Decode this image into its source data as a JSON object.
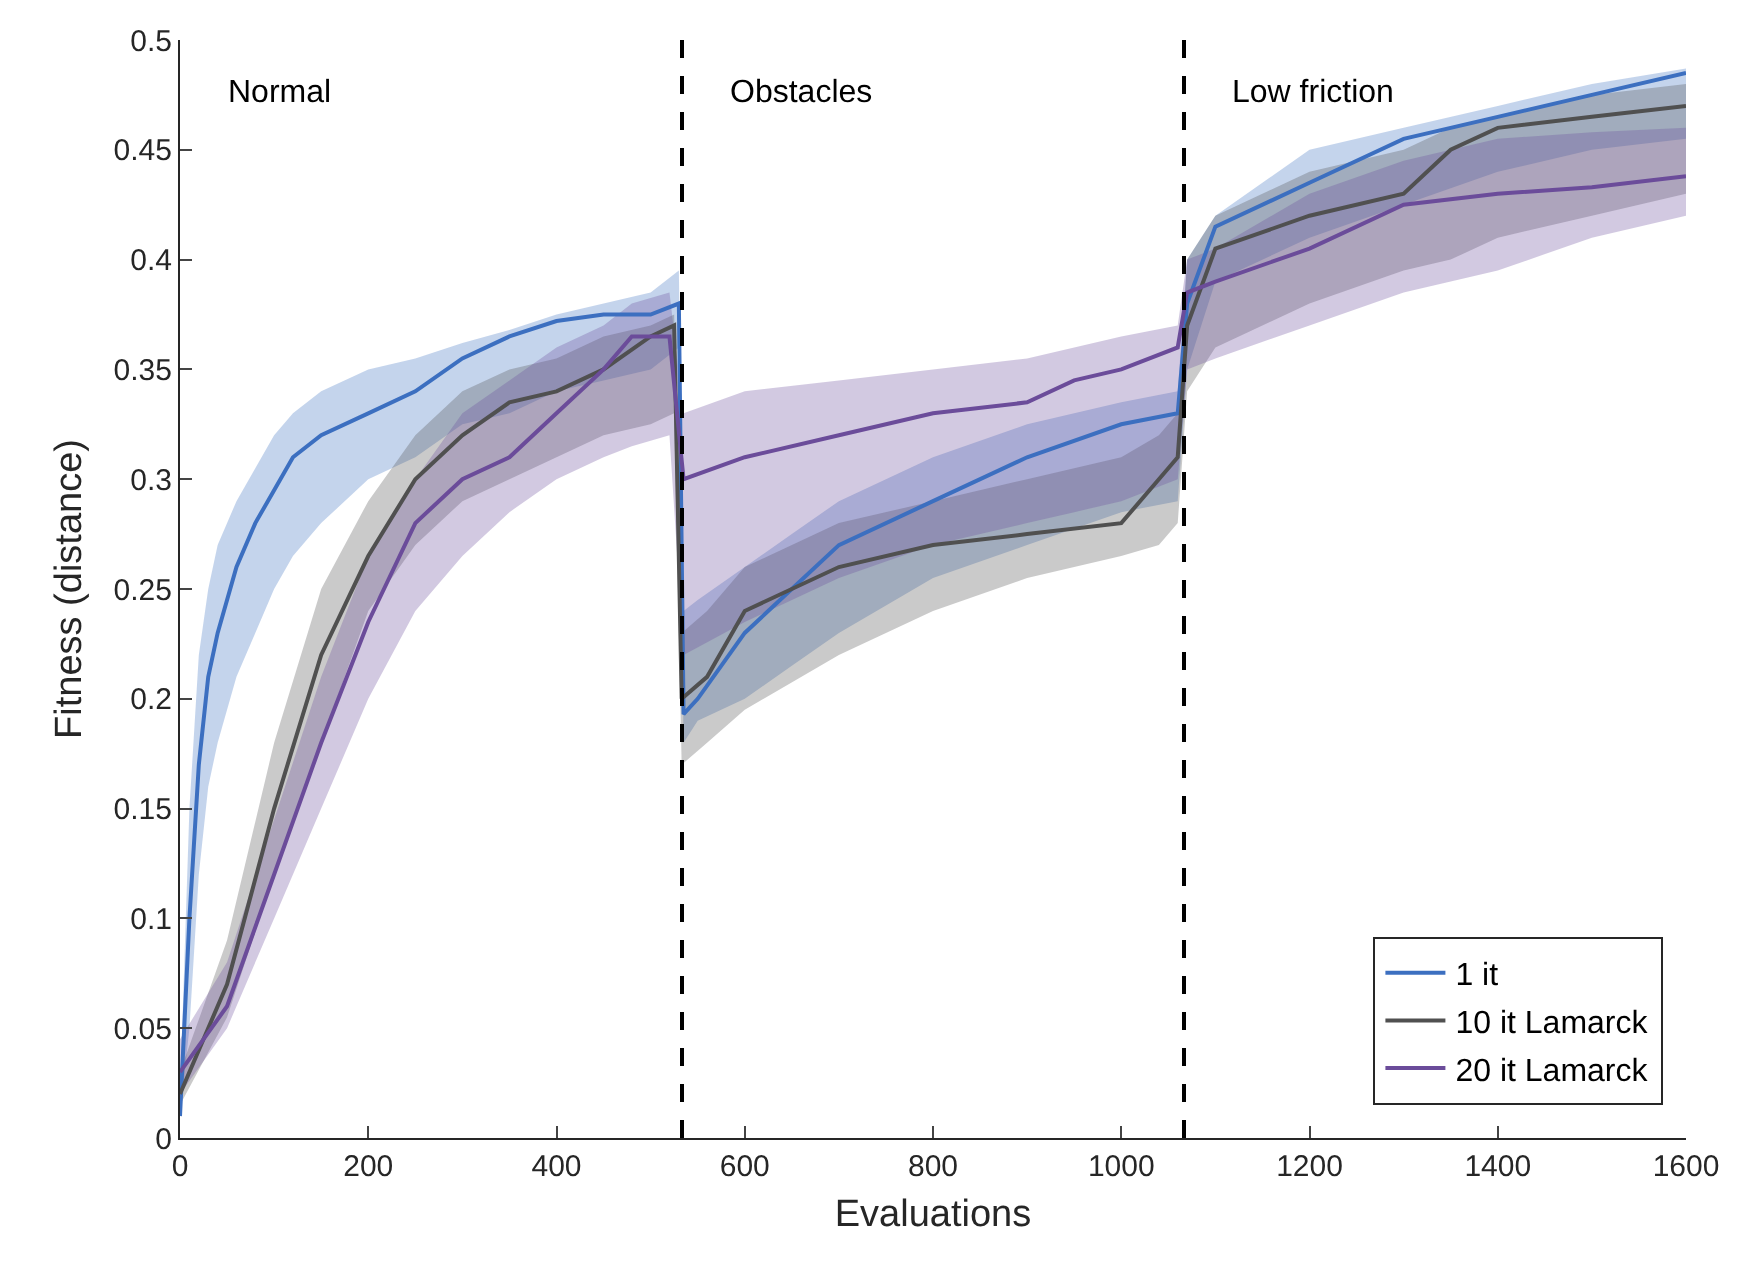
{
  "chart_data": {
    "type": "line",
    "xlabel": "Evaluations",
    "ylabel": "Fitness (distance)",
    "xlim": [
      0,
      1600
    ],
    "xticks": [
      0,
      200,
      400,
      600,
      800,
      1000,
      1200,
      1400,
      1600
    ],
    "ylim": [
      0,
      0.5
    ],
    "yticks": [
      0,
      0.05,
      0.1,
      0.15,
      0.2,
      0.25,
      0.3,
      0.35,
      0.4,
      0.45,
      0.5
    ],
    "legend": "bottom right",
    "line_style": "solid",
    "marker": "none",
    "ref_lines": [
      {
        "axis": "x",
        "value": 533.33,
        "color": "#000000",
        "line_style": "dashed"
      },
      {
        "axis": "x",
        "value": 1066.67,
        "color": "#000000",
        "line_style": "dashed"
      }
    ],
    "annotations": [
      "Normal",
      "Obstacles",
      "Low friction"
    ],
    "series": [
      {
        "name": "1 it",
        "color": "#3c6fc0",
        "x": [
          0,
          10,
          20,
          30,
          40,
          60,
          80,
          100,
          120,
          150,
          200,
          250,
          300,
          350,
          400,
          450,
          500,
          530,
          535,
          550,
          600,
          650,
          700,
          800,
          900,
          1000,
          1060,
          1070,
          1100,
          1200,
          1300,
          1400,
          1500,
          1600
        ],
        "values": [
          0.01,
          0.1,
          0.17,
          0.21,
          0.23,
          0.26,
          0.28,
          0.295,
          0.31,
          0.32,
          0.33,
          0.34,
          0.355,
          0.365,
          0.372,
          0.375,
          0.375,
          0.38,
          0.193,
          0.2,
          0.23,
          0.25,
          0.27,
          0.29,
          0.31,
          0.325,
          0.33,
          0.38,
          0.415,
          0.435,
          0.455,
          0.465,
          0.475,
          0.485
        ],
        "lower": [
          0.01,
          0.05,
          0.12,
          0.16,
          0.18,
          0.21,
          0.23,
          0.25,
          0.265,
          0.28,
          0.3,
          0.31,
          0.325,
          0.33,
          0.34,
          0.345,
          0.35,
          0.36,
          0.18,
          0.19,
          0.2,
          0.215,
          0.23,
          0.255,
          0.27,
          0.285,
          0.29,
          0.35,
          0.39,
          0.41,
          0.425,
          0.44,
          0.45,
          0.455
        ],
        "upper": [
          0.02,
          0.15,
          0.22,
          0.25,
          0.27,
          0.29,
          0.305,
          0.32,
          0.33,
          0.34,
          0.35,
          0.355,
          0.362,
          0.368,
          0.375,
          0.38,
          0.385,
          0.395,
          0.24,
          0.245,
          0.26,
          0.275,
          0.29,
          0.31,
          0.325,
          0.335,
          0.34,
          0.4,
          0.42,
          0.45,
          0.46,
          0.47,
          0.48,
          0.487
        ]
      },
      {
        "name": "10 it Lamarck",
        "color": "#505050",
        "x": [
          0,
          50,
          100,
          150,
          200,
          250,
          300,
          350,
          400,
          450,
          500,
          525,
          533,
          560,
          600,
          700,
          800,
          900,
          1000,
          1040,
          1060,
          1070,
          1100,
          1200,
          1300,
          1350,
          1400,
          1500,
          1600
        ],
        "values": [
          0.02,
          0.07,
          0.15,
          0.22,
          0.265,
          0.3,
          0.32,
          0.335,
          0.34,
          0.35,
          0.365,
          0.37,
          0.2,
          0.21,
          0.24,
          0.26,
          0.27,
          0.275,
          0.28,
          0.3,
          0.31,
          0.37,
          0.405,
          0.42,
          0.43,
          0.45,
          0.46,
          0.465,
          0.47
        ],
        "lower": [
          0.015,
          0.055,
          0.12,
          0.18,
          0.24,
          0.27,
          0.29,
          0.3,
          0.31,
          0.32,
          0.325,
          0.33,
          0.17,
          0.18,
          0.195,
          0.22,
          0.24,
          0.255,
          0.265,
          0.27,
          0.28,
          0.34,
          0.36,
          0.38,
          0.395,
          0.4,
          0.41,
          0.42,
          0.43
        ],
        "upper": [
          0.03,
          0.09,
          0.18,
          0.25,
          0.29,
          0.32,
          0.34,
          0.35,
          0.355,
          0.365,
          0.37,
          0.375,
          0.23,
          0.24,
          0.26,
          0.28,
          0.29,
          0.3,
          0.31,
          0.32,
          0.33,
          0.4,
          0.42,
          0.44,
          0.45,
          0.46,
          0.465,
          0.475,
          0.48
        ]
      },
      {
        "name": "20 it Lamarck",
        "color": "#6b4c9a",
        "x": [
          0,
          50,
          100,
          150,
          200,
          250,
          300,
          350,
          400,
          450,
          480,
          520,
          535,
          600,
          700,
          800,
          900,
          950,
          1000,
          1060,
          1070,
          1100,
          1200,
          1300,
          1400,
          1500,
          1600
        ],
        "values": [
          0.03,
          0.06,
          0.12,
          0.18,
          0.235,
          0.28,
          0.3,
          0.31,
          0.33,
          0.35,
          0.365,
          0.365,
          0.3,
          0.31,
          0.32,
          0.33,
          0.335,
          0.345,
          0.35,
          0.36,
          0.385,
          0.39,
          0.405,
          0.425,
          0.43,
          0.433,
          0.438
        ],
        "lower": [
          0.02,
          0.05,
          0.1,
          0.15,
          0.2,
          0.24,
          0.265,
          0.285,
          0.3,
          0.31,
          0.315,
          0.32,
          0.22,
          0.235,
          0.255,
          0.27,
          0.28,
          0.285,
          0.29,
          0.3,
          0.35,
          0.355,
          0.37,
          0.385,
          0.395,
          0.41,
          0.42
        ],
        "upper": [
          0.045,
          0.08,
          0.145,
          0.21,
          0.265,
          0.3,
          0.33,
          0.345,
          0.36,
          0.37,
          0.38,
          0.385,
          0.33,
          0.34,
          0.345,
          0.35,
          0.355,
          0.36,
          0.365,
          0.37,
          0.4,
          0.405,
          0.43,
          0.445,
          0.455,
          0.458,
          0.46
        ]
      }
    ]
  }
}
